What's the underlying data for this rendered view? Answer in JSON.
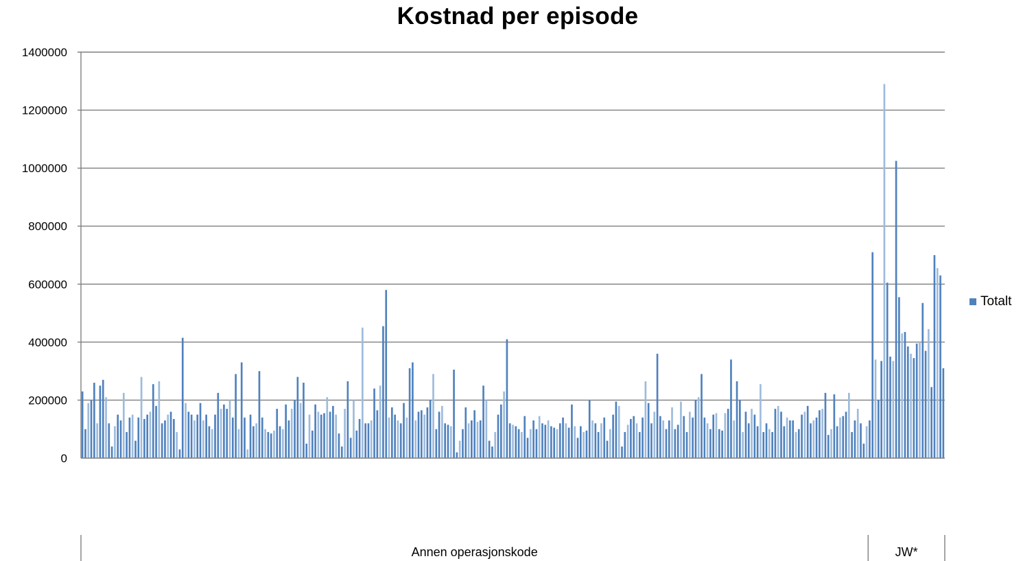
{
  "chart_data": {
    "type": "bar",
    "title": "Kostnad per episode",
    "xlabel": "",
    "ylabel": "",
    "ylim": [
      0,
      1400000
    ],
    "yticks": [
      "0",
      "200000",
      "400000",
      "600000",
      "800000",
      "1000000",
      "1200000",
      "1400000"
    ],
    "grid": true,
    "legend_position": "right",
    "group_labels": [
      "Annen operasjonskode",
      "JW*"
    ],
    "series": [
      {
        "name": "Totalt",
        "color": "#4f81bd",
        "groups": [
          {
            "label": "Annen operasjonskode",
            "values": [
              230000,
              100000,
              190000,
              200000,
              260000,
              120000,
              250000,
              270000,
              210000,
              120000,
              40000,
              110000,
              150000,
              130000,
              225000,
              90000,
              140000,
              150000,
              60000,
              140000,
              280000,
              135000,
              150000,
              160000,
              255000,
              180000,
              265000,
              120000,
              130000,
              150000,
              160000,
              135000,
              90000,
              30000,
              415000,
              190000,
              160000,
              150000,
              130000,
              150000,
              190000,
              130000,
              150000,
              110000,
              100000,
              150000,
              225000,
              170000,
              185000,
              170000,
              200000,
              140000,
              290000,
              100000,
              330000,
              140000,
              30000,
              150000,
              110000,
              120000,
              300000,
              140000,
              100000,
              90000,
              85000,
              95000,
              170000,
              110000,
              100000,
              185000,
              130000,
              170000,
              200000,
              280000,
              190000,
              260000,
              50000,
              150000,
              95000,
              185000,
              160000,
              150000,
              155000,
              210000,
              160000,
              180000,
              150000,
              85000,
              40000,
              170000,
              265000,
              70000,
              200000,
              95000,
              135000,
              450000,
              120000,
              120000,
              130000,
              240000,
              165000,
              250000,
              455000,
              580000,
              140000,
              175000,
              150000,
              130000,
              120000,
              190000,
              140000,
              310000,
              330000,
              130000,
              160000,
              165000,
              150000,
              175000,
              200000,
              290000,
              100000,
              160000,
              180000,
              120000,
              115000,
              110000,
              305000,
              20000,
              60000,
              100000,
              175000,
              120000,
              130000,
              165000,
              125000,
              130000,
              250000,
              200000,
              60000,
              40000,
              90000,
              150000,
              185000,
              230000,
              410000,
              120000,
              115000,
              110000,
              100000,
              90000,
              145000,
              70000,
              100000,
              130000,
              100000,
              145000,
              120000,
              115000,
              130000,
              110000,
              105000,
              100000,
              120000,
              140000,
              120000,
              105000,
              185000,
              110000,
              70000,
              110000,
              90000,
              95000,
              200000,
              130000,
              120000,
              90000,
              120000,
              140000,
              60000,
              100000,
              150000,
              195000,
              180000,
              40000,
              90000,
              115000,
              135000,
              145000,
              120000,
              90000,
              140000,
              265000,
              190000,
              120000,
              160000,
              360000,
              145000,
              130000,
              100000,
              130000,
              175000,
              100000,
              115000,
              195000,
              145000,
              90000,
              160000,
              140000,
              200000,
              210000,
              290000,
              140000,
              120000,
              100000,
              150000,
              155000,
              100000,
              95000,
              155000,
              170000,
              340000,
              130000,
              265000,
              200000,
              90000,
              160000,
              120000,
              170000,
              150000,
              110000,
              255000,
              90000,
              120000,
              100000,
              90000,
              170000,
              180000,
              160000,
              110000,
              140000,
              130000,
              130000,
              90000,
              100000,
              150000,
              160000,
              180000,
              120000,
              130000,
              140000,
              165000,
              170000,
              225000,
              80000,
              100000,
              220000,
              110000,
              140000,
              145000,
              160000,
              225000,
              90000,
              130000,
              170000,
              120000,
              50000,
              110000
            ]
          },
          {
            "label": "JW*",
            "values": [
              130000,
              710000,
              340000,
              200000,
              335000,
              1290000,
              605000,
              350000,
              335000,
              1025000,
              555000,
              430000,
              435000,
              385000,
              360000,
              345000,
              395000,
              400000,
              535000,
              370000,
              445000,
              245000,
              700000,
              655000,
              630000,
              310000
            ]
          }
        ]
      }
    ]
  }
}
